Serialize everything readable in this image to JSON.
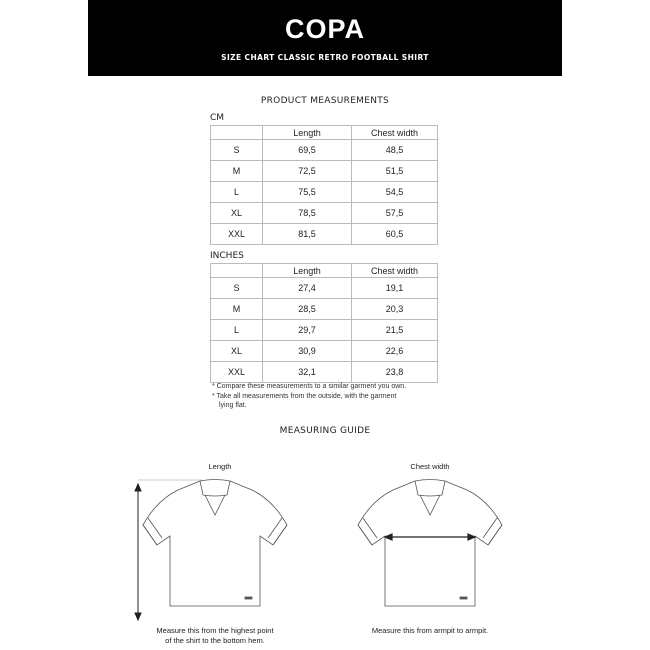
{
  "header": {
    "logo": "COPA",
    "subtitle": "SIZE CHART CLASSIC RETRO FOOTBALL SHIRT"
  },
  "measurements": {
    "title": "PRODUCT MEASUREMENTS",
    "cm": {
      "label": "CM",
      "columns": [
        "",
        "Length",
        "Chest width"
      ],
      "rows": [
        [
          "S",
          "69,5",
          "48,5"
        ],
        [
          "M",
          "72,5",
          "51,5"
        ],
        [
          "L",
          "75,5",
          "54,5"
        ],
        [
          "XL",
          "78,5",
          "57,5"
        ],
        [
          "XXL",
          "81,5",
          "60,5"
        ]
      ]
    },
    "inches": {
      "label": "INCHES",
      "columns": [
        "",
        "Length",
        "Chest width"
      ],
      "rows": [
        [
          "S",
          "27,4",
          "19,1"
        ],
        [
          "M",
          "28,5",
          "20,3"
        ],
        [
          "L",
          "29,7",
          "21,5"
        ],
        [
          "XL",
          "30,9",
          "22,6"
        ],
        [
          "XXL",
          "32,1",
          "23,8"
        ]
      ]
    },
    "notes": [
      "* Compare these measurements to a similar garment you own.",
      "* Take all measurements from the outside, with the garment",
      "lying flat."
    ]
  },
  "guide": {
    "title": "MEASURING GUIDE",
    "length": {
      "label": "Length",
      "caption1": "Measure this from the highest point",
      "caption2": "of the shirt to the bottom hem."
    },
    "chest": {
      "label": "Chest width",
      "caption1": "Measure this from armpit to armpit."
    }
  }
}
